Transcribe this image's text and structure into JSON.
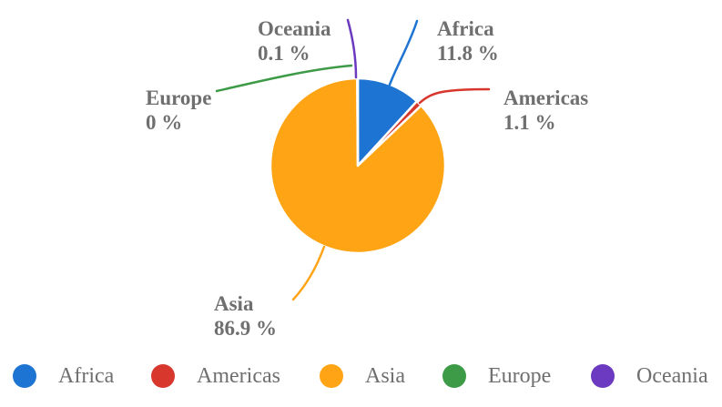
{
  "chart_data": {
    "type": "pie",
    "title": "",
    "unit": "%",
    "total": 99.9,
    "start_angle_deg": 0,
    "direction": "clockwise",
    "legend_position": "bottom",
    "background": "#FFFFFF",
    "label_color": "#6F6F6F",
    "slice_gap_color": "#FFFFFF",
    "series": [
      {
        "name": "Africa",
        "value": 11.8,
        "pct_label": "11.8 %",
        "color": "#1E74D2"
      },
      {
        "name": "Americas",
        "value": 1.1,
        "pct_label": "1.1 %",
        "color": "#D7372C"
      },
      {
        "name": "Asia",
        "value": 86.9,
        "pct_label": "86.9 %",
        "color": "#FFA415"
      },
      {
        "name": "Europe",
        "value": 0,
        "pct_label": "0 %",
        "color": "#3D9A46"
      },
      {
        "name": "Oceania",
        "value": 0.1,
        "pct_label": "0.1 %",
        "color": "#6B3AC0"
      }
    ]
  }
}
